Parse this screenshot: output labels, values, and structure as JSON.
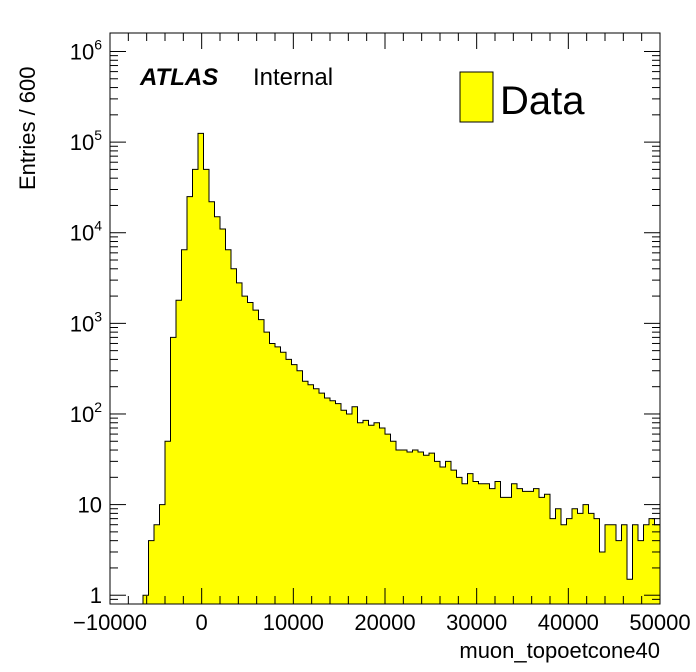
{
  "chart_data": {
    "type": "bar",
    "style": "filled-histogram",
    "title": "",
    "xlabel": "muon_topoetcone40",
    "ylabel": "Entries / 600",
    "xlim": [
      -10000,
      50000
    ],
    "ylim": [
      0.8,
      1600000
    ],
    "yscale": "log",
    "bin_width": 600,
    "fill_color": "#ffff00",
    "line_color": "#000000",
    "grid": false,
    "legend": {
      "placement": "top-right",
      "entries": [
        {
          "name": "Data",
          "color": "#ffff00"
        }
      ]
    },
    "annotation": {
      "atlas": "ATLAS",
      "label": "Internal"
    },
    "x_ticks": [
      {
        "v": -10000,
        "t": "−10000"
      },
      {
        "v": 0,
        "t": "0"
      },
      {
        "v": 10000,
        "t": "10000"
      },
      {
        "v": 20000,
        "t": "20000"
      },
      {
        "v": 30000,
        "t": "30000"
      },
      {
        "v": 40000,
        "t": "40000"
      },
      {
        "v": 50000,
        "t": "50000"
      }
    ],
    "y_ticks": [
      {
        "v": 1,
        "base": "1",
        "exp": ""
      },
      {
        "v": 10,
        "base": "10",
        "exp": ""
      },
      {
        "v": 100,
        "base": "10",
        "exp": "2"
      },
      {
        "v": 1000,
        "base": "10",
        "exp": "3"
      },
      {
        "v": 10000,
        "base": "10",
        "exp": "4"
      },
      {
        "v": 100000,
        "base": "10",
        "exp": "5"
      },
      {
        "v": 1000000,
        "base": "10",
        "exp": "6"
      }
    ],
    "bins": [
      [
        -6400,
        1
      ],
      [
        -5800,
        4
      ],
      [
        -5200,
        6
      ],
      [
        -4600,
        10
      ],
      [
        -4000,
        50
      ],
      [
        -3400,
        700
      ],
      [
        -2800,
        1800
      ],
      [
        -2200,
        6500
      ],
      [
        -1600,
        25000
      ],
      [
        -1000,
        50000
      ],
      [
        -400,
        125000
      ],
      [
        200,
        50000
      ],
      [
        800,
        22000
      ],
      [
        1400,
        15000
      ],
      [
        2000,
        11000
      ],
      [
        2600,
        6500
      ],
      [
        3200,
        4000
      ],
      [
        3800,
        2800
      ],
      [
        4400,
        2000
      ],
      [
        5000,
        1700
      ],
      [
        5600,
        1400
      ],
      [
        6200,
        1100
      ],
      [
        6800,
        800
      ],
      [
        7400,
        600
      ],
      [
        8000,
        550
      ],
      [
        8600,
        480
      ],
      [
        9200,
        400
      ],
      [
        9800,
        350
      ],
      [
        10400,
        300
      ],
      [
        11000,
        230
      ],
      [
        11600,
        210
      ],
      [
        12200,
        190
      ],
      [
        12800,
        170
      ],
      [
        13400,
        150
      ],
      [
        14000,
        140
      ],
      [
        14600,
        130
      ],
      [
        15200,
        110
      ],
      [
        15800,
        100
      ],
      [
        16400,
        120
      ],
      [
        17000,
        80
      ],
      [
        17600,
        85
      ],
      [
        18200,
        75
      ],
      [
        18800,
        80
      ],
      [
        19400,
        70
      ],
      [
        20000,
        60
      ],
      [
        20600,
        50
      ],
      [
        21200,
        40
      ],
      [
        21800,
        40
      ],
      [
        22400,
        38
      ],
      [
        23000,
        40
      ],
      [
        23600,
        38
      ],
      [
        24200,
        35
      ],
      [
        24800,
        37
      ],
      [
        25400,
        30
      ],
      [
        26000,
        26
      ],
      [
        26600,
        30
      ],
      [
        27200,
        24
      ],
      [
        27800,
        20
      ],
      [
        28400,
        17
      ],
      [
        29000,
        22
      ],
      [
        29600,
        18
      ],
      [
        30200,
        17
      ],
      [
        30800,
        17
      ],
      [
        31400,
        15
      ],
      [
        32000,
        18
      ],
      [
        32600,
        12
      ],
      [
        33200,
        12
      ],
      [
        33800,
        17
      ],
      [
        34400,
        15
      ],
      [
        35000,
        14
      ],
      [
        35600,
        14
      ],
      [
        36200,
        15
      ],
      [
        36800,
        12
      ],
      [
        37400,
        13
      ],
      [
        38000,
        7
      ],
      [
        38600,
        9
      ],
      [
        39200,
        6
      ],
      [
        39800,
        7
      ],
      [
        40400,
        9
      ],
      [
        41000,
        8
      ],
      [
        41600,
        10
      ],
      [
        42200,
        8
      ],
      [
        42800,
        7
      ],
      [
        43400,
        3
      ],
      [
        44000,
        6
      ],
      [
        44600,
        6
      ],
      [
        45200,
        4
      ],
      [
        45800,
        6
      ],
      [
        46400,
        1.5
      ],
      [
        47000,
        6
      ],
      [
        47600,
        4
      ],
      [
        48200,
        6
      ],
      [
        48800,
        7
      ],
      [
        49400,
        6
      ]
    ]
  }
}
